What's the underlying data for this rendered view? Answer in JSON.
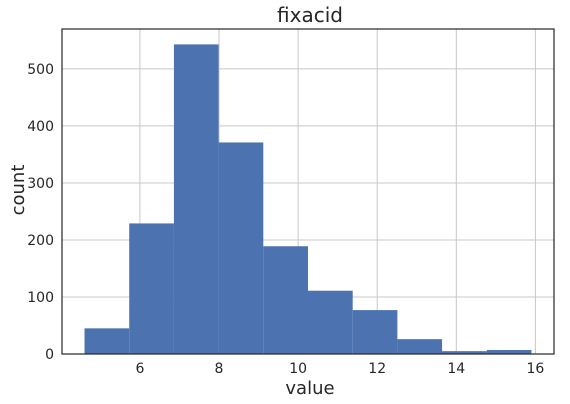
{
  "chart_data": {
    "type": "bar",
    "title": "fixacid",
    "xlabel": "value",
    "ylabel": "count",
    "bins": [
      {
        "x0": 4.6,
        "x1": 5.73,
        "count": 45
      },
      {
        "x0": 5.73,
        "x1": 6.86,
        "count": 229
      },
      {
        "x0": 6.86,
        "x1": 7.99,
        "count": 543
      },
      {
        "x0": 7.99,
        "x1": 9.12,
        "count": 371
      },
      {
        "x0": 9.12,
        "x1": 10.25,
        "count": 189
      },
      {
        "x0": 10.25,
        "x1": 11.38,
        "count": 111
      },
      {
        "x0": 11.38,
        "x1": 12.51,
        "count": 77
      },
      {
        "x0": 12.51,
        "x1": 13.64,
        "count": 26
      },
      {
        "x0": 13.64,
        "x1": 14.77,
        "count": 5
      },
      {
        "x0": 14.77,
        "x1": 15.9,
        "count": 7
      }
    ],
    "xlim": [
      4.03,
      16.47
    ],
    "ylim": [
      0,
      570
    ],
    "xticks": [
      6,
      8,
      10,
      12,
      14,
      16
    ],
    "yticks": [
      0,
      100,
      200,
      300,
      400,
      500
    ],
    "grid": true,
    "bar_color": "#4c72b0"
  }
}
